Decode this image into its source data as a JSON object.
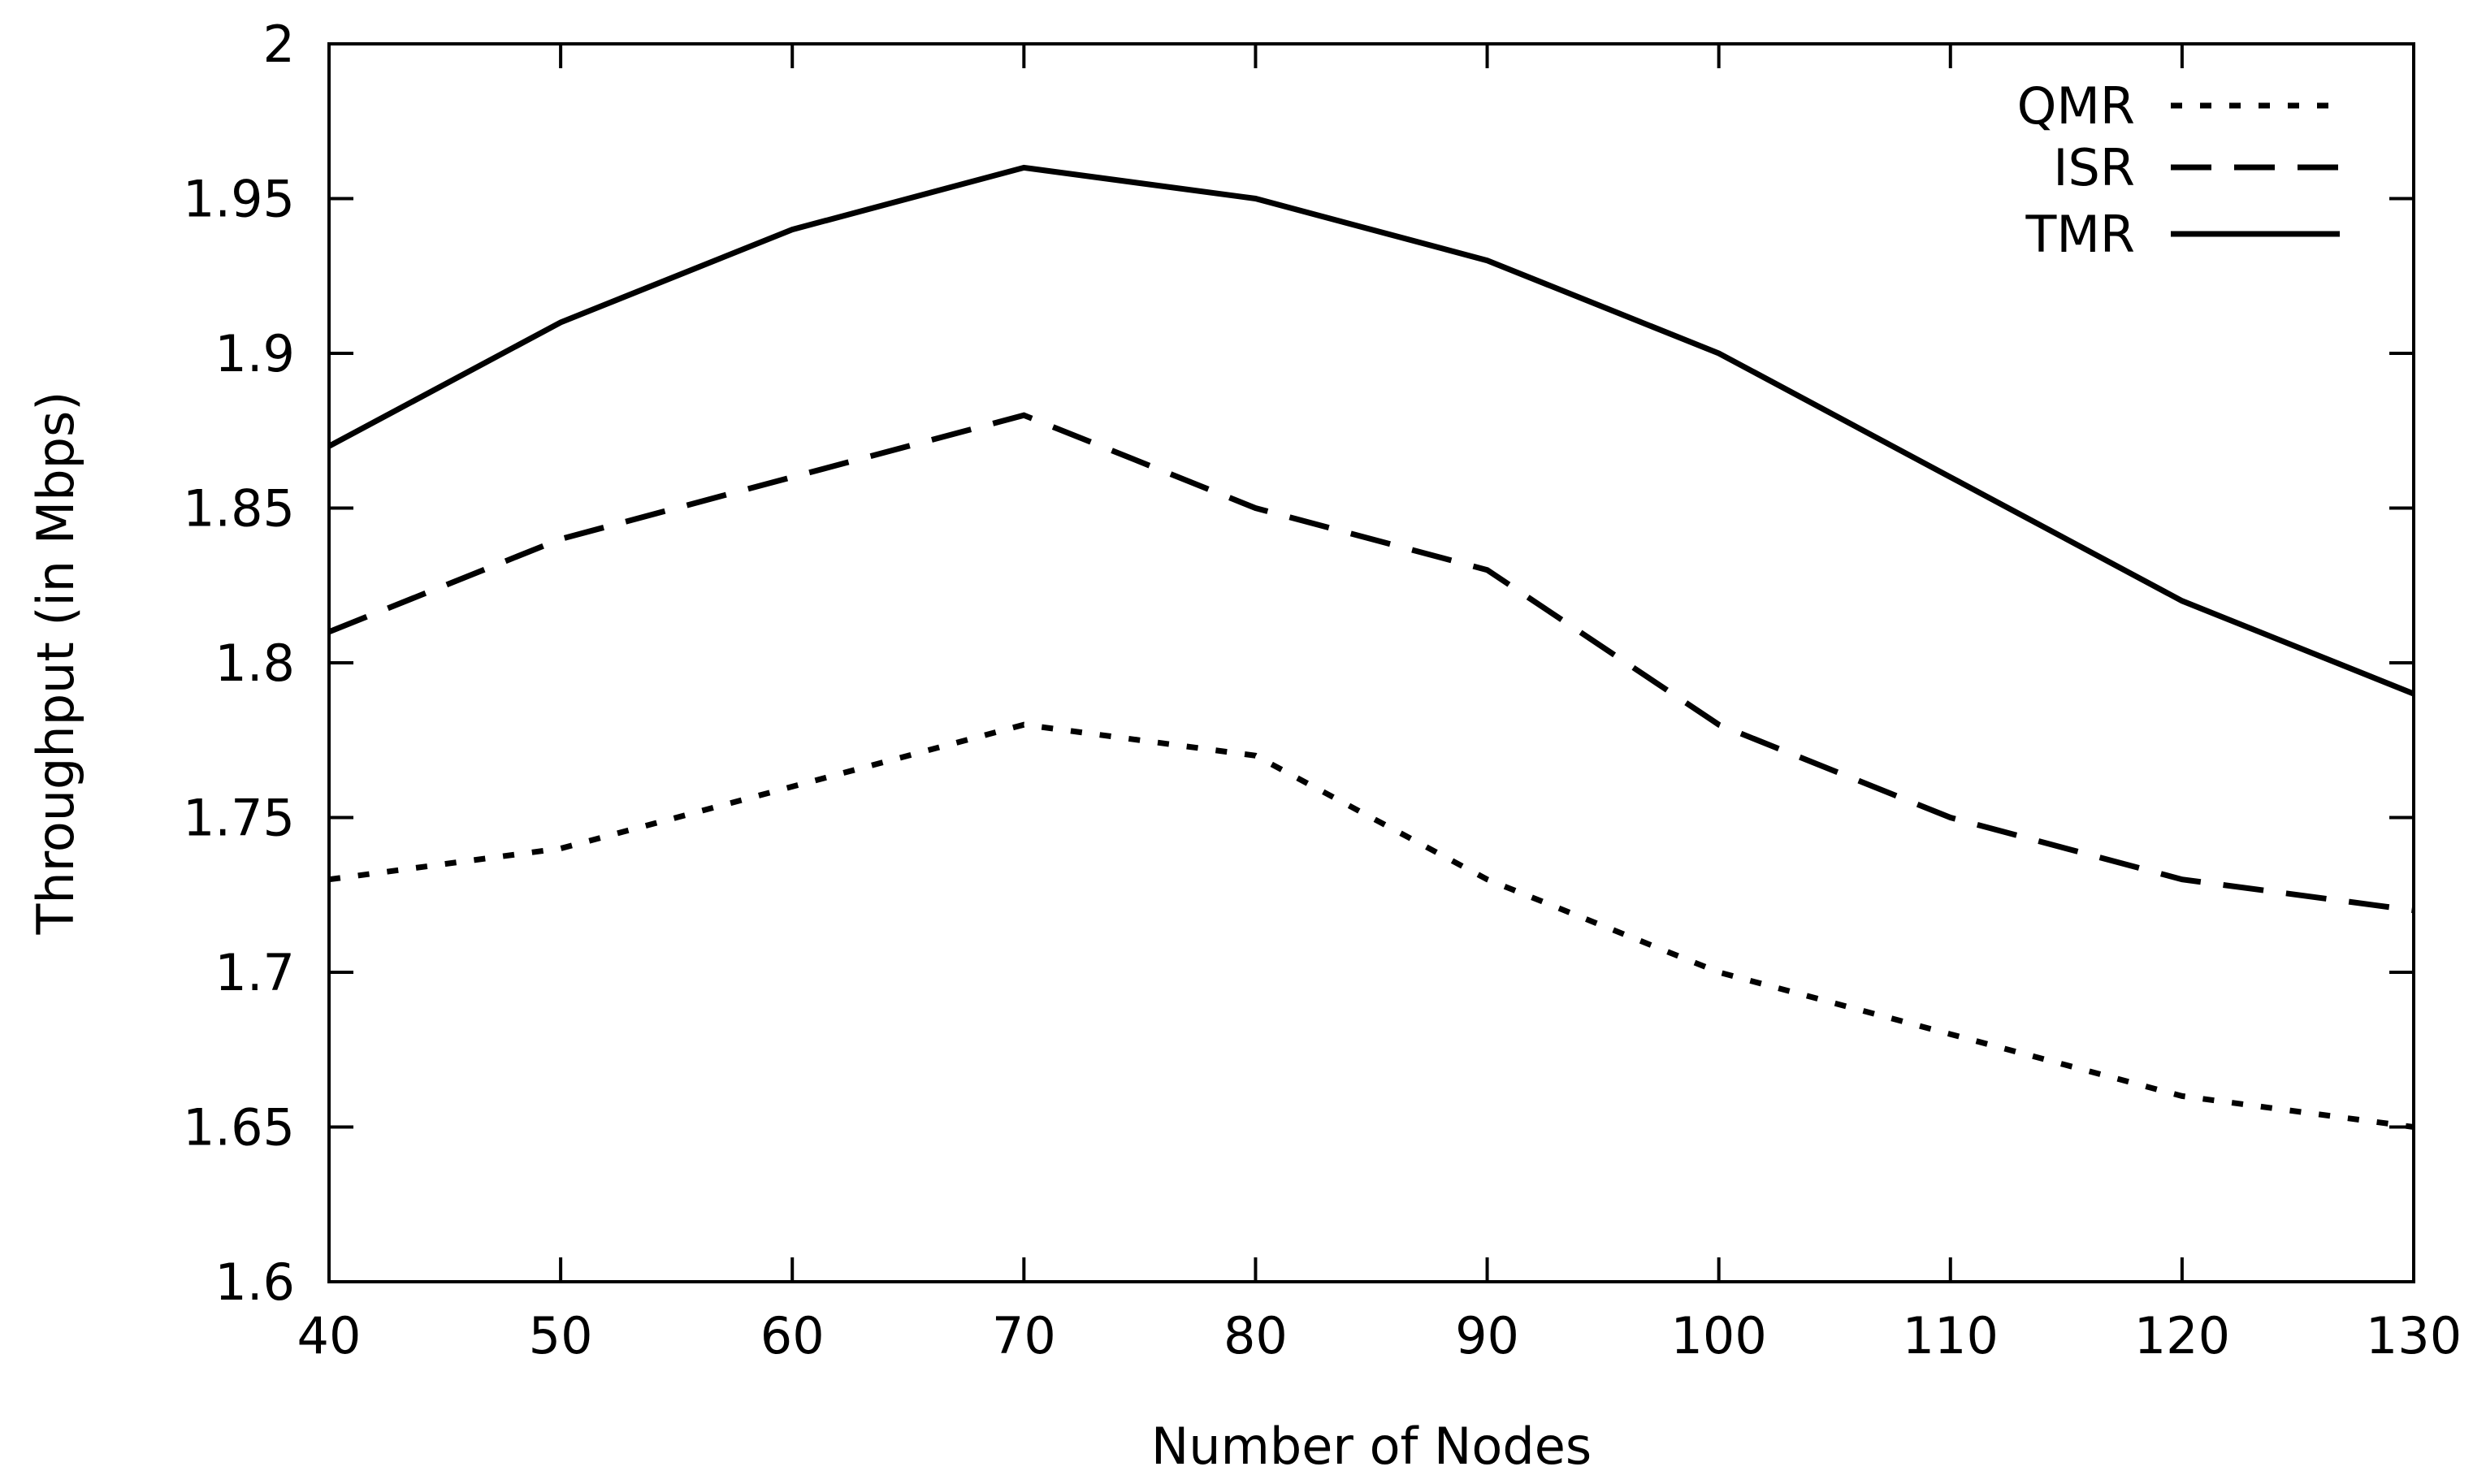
{
  "chart_data": {
    "type": "line",
    "title": "",
    "xlabel": "Number of Nodes",
    "ylabel": "Throughput (in Mbps)",
    "x": [
      40,
      50,
      60,
      70,
      80,
      90,
      100,
      110,
      120,
      130
    ],
    "xlim": [
      40,
      130
    ],
    "ylim": [
      1.6,
      2.0
    ],
    "xticks": [
      "40",
      "50",
      "60",
      "70",
      "80",
      "90",
      "100",
      "110",
      "120",
      "130"
    ],
    "yticks": [
      "1.6",
      "1.65",
      "1.7",
      "1.75",
      "1.8",
      "1.85",
      "1.9",
      "1.95",
      "2"
    ],
    "grid": false,
    "legend_position": "top-right",
    "series": [
      {
        "name": "QMR",
        "style": "dotted",
        "values": [
          1.73,
          1.74,
          1.76,
          1.78,
          1.77,
          1.73,
          1.7,
          1.68,
          1.66,
          1.65
        ]
      },
      {
        "name": "ISR",
        "style": "dashed",
        "values": [
          1.81,
          1.84,
          1.86,
          1.88,
          1.85,
          1.83,
          1.78,
          1.75,
          1.73,
          1.72
        ]
      },
      {
        "name": "TMR",
        "style": "solid",
        "values": [
          1.87,
          1.91,
          1.94,
          1.96,
          1.95,
          1.93,
          1.9,
          1.86,
          1.82,
          1.79
        ]
      }
    ],
    "colors": {
      "line": "#000000",
      "background": "#ffffff"
    }
  }
}
